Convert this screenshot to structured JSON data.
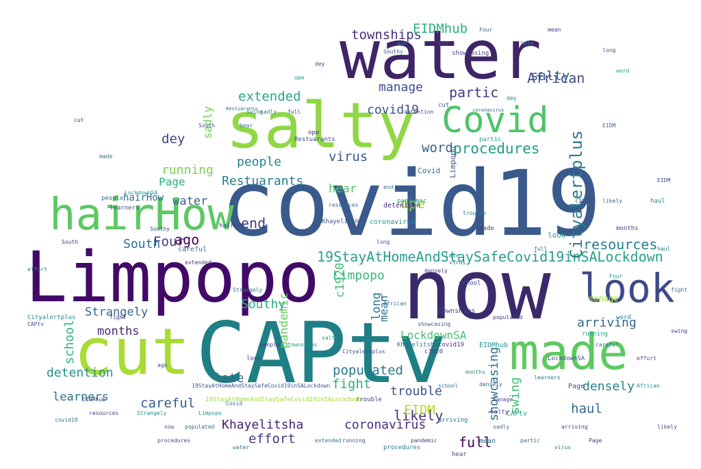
{
  "words": [
    {
      "text": "covid19",
      "color": "#3a5a8c"
    },
    {
      "text": "now",
      "color": "#3b2a6b"
    },
    {
      "text": "CAPtv",
      "color": "#1f7f86"
    },
    {
      "text": "water",
      "color": "#3f2467"
    },
    {
      "text": "salty",
      "color": "#8fd744"
    },
    {
      "text": "Limpopo",
      "color": "#420a68"
    },
    {
      "text": "cut",
      "color": "#a8db34"
    },
    {
      "text": "made",
      "color": "#5ec962"
    },
    {
      "text": "hairHow",
      "color": "#5cc863"
    },
    {
      "text": "look",
      "color": "#3e4a89"
    },
    {
      "text": "Covid",
      "color": "#4ec36b"
    },
    {
      "text": "19StayAtHomeAndStaySafeCovid19inSALockdown",
      "color": "#2a9d8e"
    },
    {
      "text": "Cityalertplus",
      "color": "#2a7b8e"
    },
    {
      "text": "procedures",
      "color": "#1e9c89"
    },
    {
      "text": "resources",
      "color": "#277f8e"
    },
    {
      "text": "Khayelitsha",
      "color": "#3f1f6e"
    },
    {
      "text": "coronavirus",
      "color": "#472e7c"
    },
    {
      "text": "showcasing",
      "color": "#2e6f8e"
    },
    {
      "text": "arriving",
      "color": "#31688e"
    },
    {
      "text": "LockdownSA",
      "color": "#44bf70"
    },
    {
      "text": "densely",
      "color": "#26828e"
    },
    {
      "text": "Restuarants",
      "color": "#287d8e"
    },
    {
      "text": "Strangely",
      "color": "#33638d"
    },
    {
      "text": "detention",
      "color": "#21918c"
    },
    {
      "text": "learners",
      "color": "#2c728e"
    },
    {
      "text": "townships",
      "color": "#46307e"
    },
    {
      "text": "EIDMhub",
      "color": "#2db27d"
    },
    {
      "text": "extended",
      "color": "#22a884"
    },
    {
      "text": "pandemic",
      "color": "#65cb5e"
    },
    {
      "text": "populated",
      "color": "#2a788e"
    },
    {
      "text": "trouble",
      "color": "#3b528b"
    },
    {
      "text": "effort",
      "color": "#443983"
    },
    {
      "text": "careful",
      "color": "#38598c"
    },
    {
      "text": "African",
      "color": "#404688"
    },
    {
      "text": "running",
      "color": "#7ad151"
    },
    {
      "text": "manage",
      "color": "#3d4d8a"
    },
    {
      "text": "people",
      "color": "#25838e"
    },
    {
      "text": "virus",
      "color": "#39568c"
    },
    {
      "text": "school",
      "color": "#2fb47c"
    },
    {
      "text": "months",
      "color": "#482475"
    },
    {
      "text": "partic",
      "color": "#443a83"
    },
    {
      "text": "salty",
      "color": "#365d8d"
    },
    {
      "text": "Southy",
      "color": "#27ad81"
    },
    {
      "text": "fight",
      "color": "#2ab07f"
    },
    {
      "text": "likely",
      "color": "#46337e"
    },
    {
      "text": "full",
      "color": "#440154"
    },
    {
      "text": "haul",
      "color": "#31688e"
    },
    {
      "text": "swing",
      "color": "#3fbc73"
    },
    {
      "text": "EIDM",
      "color": "#b5de2b"
    },
    {
      "text": "word",
      "color": "#355f8d"
    },
    {
      "text": "mean",
      "color": "#2d708e"
    },
    {
      "text": "dey",
      "color": "#414487"
    },
    {
      "text": "ago",
      "color": "#440154"
    },
    {
      "text": "end",
      "color": "#443983"
    },
    {
      "text": "ope",
      "color": "#a5db36"
    },
    {
      "text": "long",
      "color": "#2c728e"
    },
    {
      "text": "late",
      "color": "#31688e"
    },
    {
      "text": "Four",
      "color": "#453781"
    },
    {
      "text": "South",
      "color": "#2d708e"
    },
    {
      "text": "Page",
      "color": "#29af7f"
    },
    {
      "text": "c1920",
      "color": "#3fbc73"
    },
    {
      "text": "hear",
      "color": "#54c568"
    },
    {
      "text": "sadly",
      "color": "#6ece58"
    },
    {
      "text": "water",
      "color": "#33638d"
    },
    {
      "text": "Limpopo",
      "color": "#35b779"
    },
    {
      "text": "covid19",
      "color": "#3b528b"
    },
    {
      "text": "CAPtv",
      "color": "#1f9e89"
    },
    {
      "text": "look",
      "color": "#20a386"
    },
    {
      "text": "people",
      "color": "#2a788e"
    },
    {
      "text": "hairHow",
      "color": "#3e4989"
    },
    {
      "text": "Covid",
      "color": "#2c728e"
    },
    {
      "text": "hairHow",
      "color": "#2e6e8e"
    },
    {
      "text": "Limpopo",
      "color": "#3b528b"
    },
    {
      "text": "Cityalertplus",
      "color": "#26828e"
    },
    {
      "text": "coronavirus",
      "color": "#21918c"
    },
    {
      "text": "townships",
      "color": "#3e4a89"
    },
    {
      "text": "Khayelitsha",
      "color": "#3b528b"
    },
    {
      "text": "arriving",
      "color": "#2c728e"
    },
    {
      "text": "detention",
      "color": "#482878"
    },
    {
      "text": "African",
      "color": "#2a788e"
    },
    {
      "text": "salty",
      "color": "#3f4788"
    },
    {
      "text": "manage",
      "color": "#9fda3a"
    },
    {
      "text": "trouble",
      "color": "#3e4a89"
    },
    {
      "text": "procedures",
      "color": "#2a788e"
    },
    {
      "text": "Southy",
      "color": "#39568c"
    },
    {
      "text": "covid19",
      "color": "#46327e"
    },
    {
      "text": "EIDMhub",
      "color": "#21918c"
    },
    {
      "text": "LockdownSA",
      "color": "#3b528b"
    },
    {
      "text": "densely",
      "color": "#31688e"
    },
    {
      "text": "showcasing",
      "color": "#414487"
    },
    {
      "text": "resources",
      "color": "#31688e"
    },
    {
      "text": "Restuarants",
      "color": "#3e4a89"
    },
    {
      "text": "Strangely",
      "color": "#2c728e"
    },
    {
      "text": "populated",
      "color": "#453781"
    },
    {
      "text": "extended",
      "color": "#46337e"
    },
    {
      "text": "learners",
      "color": "#3b528b"
    },
    {
      "text": "pandemic",
      "color": "#21918c"
    },
    {
      "text": "careful",
      "color": "#2c728e"
    },
    {
      "text": "running",
      "color": "#1f9e89"
    },
    {
      "text": "effort",
      "color": "#2a788e"
    },
    {
      "text": "school",
      "color": "#3b528b"
    },
    {
      "text": "likely",
      "color": "#31688e"
    },
    {
      "text": "virus",
      "color": "#2c728e"
    },
    {
      "text": "months",
      "color": "#3e4a89"
    },
    {
      "text": "partic",
      "color": "#1f9e89"
    },
    {
      "text": "fight",
      "color": "#453781"
    },
    {
      "text": "swing",
      "color": "#2a788e"
    },
    {
      "text": "haul",
      "color": "#21918c"
    },
    {
      "text": "EIDM",
      "color": "#39568c"
    },
    {
      "text": "c1920",
      "color": "#414487"
    },
    {
      "text": "Page",
      "color": "#3e4a89"
    },
    {
      "text": "word",
      "color": "#2a788e"
    },
    {
      "text": "mean",
      "color": "#31688e"
    },
    {
      "text": "long",
      "color": "#3b528b"
    },
    {
      "text": "late",
      "color": "#21918c"
    },
    {
      "text": "ope",
      "color": "#453781"
    },
    {
      "text": "end",
      "color": "#2c728e"
    },
    {
      "text": "ago",
      "color": "#3e4a89"
    },
    {
      "text": "dey",
      "color": "#2a788e"
    },
    {
      "text": "cut",
      "color": "#31688e"
    },
    {
      "text": "now",
      "color": "#3b528b"
    },
    {
      "text": "made",
      "color": "#453781"
    },
    {
      "text": "water",
      "color": "#2c728e"
    },
    {
      "text": "full",
      "color": "#2a788e"
    },
    {
      "text": "hear",
      "color": "#3e4a89"
    },
    {
      "text": "sadly",
      "color": "#31688e"
    },
    {
      "text": "Four",
      "color": "#21918c"
    },
    {
      "text": "South",
      "color": "#453781"
    },
    {
      "text": "19StayAtHomeAndStaySafeCovid19inSALockdown",
      "color": "#3b528b"
    },
    {
      "text": "19StayAtHomeAndStaySafeCovid19inSALockdown",
      "color": "#a0da39"
    },
    {
      "text": "Limpopo",
      "color": "#21918c"
    },
    {
      "text": "CAPtv",
      "color": "#3e4a89"
    },
    {
      "text": "covid19",
      "color": "#2c728e"
    },
    {
      "text": "Covid",
      "color": "#31688e"
    },
    {
      "text": "people",
      "color": "#453781"
    },
    {
      "text": "look",
      "color": "#3b528b"
    },
    {
      "text": "salty",
      "color": "#21918c"
    },
    {
      "text": "Cityalertplus",
      "color": "#3e4a89"
    },
    {
      "text": "Khayelitsha",
      "color": "#2a788e"
    },
    {
      "text": "arriving",
      "color": "#453781"
    },
    {
      "text": "Restuarants",
      "color": "#2c728e"
    },
    {
      "text": "coronavirus",
      "color": "#31688e"
    },
    {
      "text": "townships",
      "color": "#21918c"
    },
    {
      "text": "showcasing",
      "color": "#3b528b"
    },
    {
      "text": "trouble",
      "color": "#2a788e"
    },
    {
      "text": "detention",
      "color": "#3e4a89"
    },
    {
      "text": "densely",
      "color": "#453781"
    },
    {
      "text": "learners",
      "color": "#2c728e"
    },
    {
      "text": "careful",
      "color": "#31688e"
    },
    {
      "text": "effort",
      "color": "#3b528b"
    },
    {
      "text": "African",
      "color": "#21918c"
    },
    {
      "text": "likely",
      "color": "#3e4a89"
    },
    {
      "text": "swing",
      "color": "#453781"
    },
    {
      "text": "haul",
      "color": "#2a788e"
    },
    {
      "text": "fight",
      "color": "#2c728e"
    },
    {
      "text": "EIDMhub",
      "color": "#3b528b"
    },
    {
      "text": "resources",
      "color": "#453781"
    },
    {
      "text": "Strangely",
      "color": "#21918c"
    },
    {
      "text": "procedures",
      "color": "#3e4a89"
    },
    {
      "text": "populated",
      "color": "#31688e"
    },
    {
      "text": "extended",
      "color": "#2a788e"
    },
    {
      "text": "running",
      "color": "#3b528b"
    },
    {
      "text": "pandemic",
      "color": "#453781"
    },
    {
      "text": "school",
      "color": "#2c728e"
    },
    {
      "text": "months",
      "color": "#21918c"
    },
    {
      "text": "manage",
      "color": "#3e4a89"
    },
    {
      "text": "partic",
      "color": "#31688e"
    },
    {
      "text": "virus",
      "color": "#2a788e"
    },
    {
      "text": "Page",
      "color": "#453781"
    },
    {
      "text": "c1920",
      "color": "#3b528b"
    },
    {
      "text": "EIDM",
      "color": "#2c728e"
    },
    {
      "text": "word",
      "color": "#21918c"
    },
    {
      "text": "long",
      "color": "#3e4a89"
    },
    {
      "text": "mean",
      "color": "#453781"
    },
    {
      "text": "late",
      "color": "#2a788e"
    },
    {
      "text": "Four",
      "color": "#31688e"
    },
    {
      "text": "end",
      "color": "#3b528b"
    },
    {
      "text": "ago",
      "color": "#2c728e"
    },
    {
      "text": "dey",
      "color": "#453781"
    },
    {
      "text": "ope",
      "color": "#21918c"
    },
    {
      "text": "full",
      "color": "#3e4a89"
    },
    {
      "text": "sadly",
      "color": "#2a788e"
    },
    {
      "text": "hear",
      "color": "#31688e"
    },
    {
      "text": "South",
      "color": "#3b528b"
    },
    {
      "text": "cut",
      "color": "#453781"
    },
    {
      "text": "made",
      "color": "#2c728e"
    },
    {
      "text": "LockdownSA",
      "color": "#21918c"
    },
    {
      "text": "Southy",
      "color": "#3e4a89"
    }
  ]
}
